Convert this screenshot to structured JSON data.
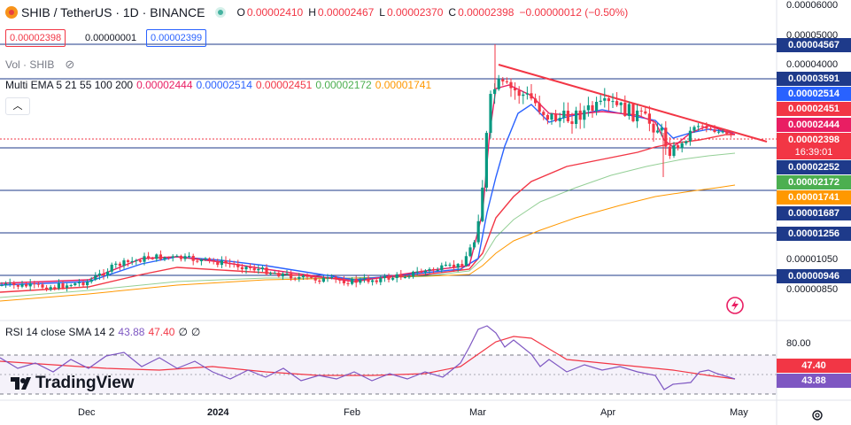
{
  "header": {
    "symbol": "SHIB / TetherUS · 1D · BINANCE",
    "o_label": "O",
    "o": "0.00002410",
    "h_label": "H",
    "h": "0.00002467",
    "l_label": "L",
    "l": "0.00002370",
    "c_label": "C",
    "c": "0.00002398",
    "change": "−0.00000012 (−0.50%)"
  },
  "price_boxes": {
    "sell": "0.00002398",
    "spread": "0.00000001",
    "buy": "0.00002399"
  },
  "volume_label": "Vol · SHIB",
  "ema_legend": {
    "title": "Multi EMA 5 21 55 100 200",
    "values": [
      "0.00002444",
      "0.00002514",
      "0.00002451",
      "0.00002172",
      "0.00001741"
    ],
    "colors": [
      "#e91e63",
      "#2962ff",
      "#f23645",
      "#4caf50",
      "#ff9800"
    ]
  },
  "price_axis": {
    "plain_ticks": [
      "0.00006000",
      "0.00005000",
      "0.00004000",
      "0.00001050",
      "0.00000850"
    ],
    "tags": [
      {
        "text": "0.00004567",
        "color": "#1e3a8a"
      },
      {
        "text": "0.00003591",
        "color": "#1e3a8a"
      },
      {
        "text": "0.00002514",
        "color": "#2962ff"
      },
      {
        "text": "0.00002451",
        "color": "#f23645"
      },
      {
        "text": "0.00002444",
        "color": "#e91e63"
      },
      {
        "text": "0.00002398",
        "color": "#f23645"
      },
      {
        "text": "0.00002252",
        "color": "#1e3a8a"
      },
      {
        "text": "0.00002172",
        "color": "#4caf50"
      },
      {
        "text": "0.00001741",
        "color": "#ff9800"
      },
      {
        "text": "0.00001687",
        "color": "#1e3a8a"
      },
      {
        "text": "0.00001256",
        "color": "#1e3a8a"
      },
      {
        "text": "0.00000946",
        "color": "#1e3a8a"
      }
    ],
    "countdown": "16:39:01"
  },
  "rsi": {
    "legend": "RSI 14 close SMA 14 2",
    "rsi_value": "43.88",
    "sma_value": "47.40",
    "extra1": "∅",
    "extra2": "∅",
    "level_80": "80.00",
    "tag_sma": "47.40",
    "tag_rsi": "43.88"
  },
  "time_axis": {
    "labels": [
      "Dec",
      "2024",
      "Feb",
      "Mar",
      "Apr",
      "May"
    ]
  },
  "branding": {
    "logo_text": "TradingView"
  },
  "colors": {
    "up": "#089981",
    "down": "#f23645",
    "rsi": "#7e57c2",
    "hline": "#1e3a8a"
  }
}
